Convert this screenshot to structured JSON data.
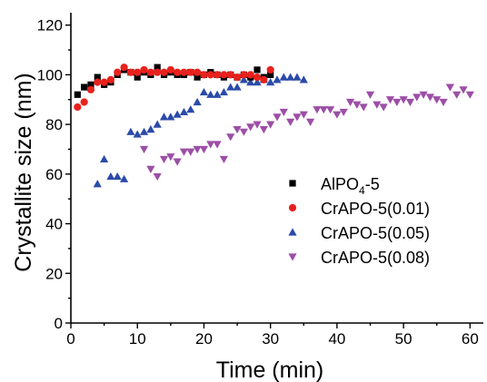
{
  "chart_data": {
    "type": "scatter",
    "xlabel": "Time (min)",
    "ylabel": "Crystallite size (nm)",
    "xlim": [
      0,
      62
    ],
    "ylim": [
      0,
      125
    ],
    "xticks": [
      0,
      10,
      20,
      30,
      40,
      50,
      60
    ],
    "yticks": [
      0,
      20,
      40,
      60,
      80,
      100,
      120
    ],
    "grid": false,
    "legend_position": "center-right",
    "series": [
      {
        "name": "AlPO4-5",
        "name_parts": {
          "base": "AlPO",
          "sub": "4",
          "suffix": "-5"
        },
        "marker": "square",
        "color": "#000000",
        "x": [
          1,
          2,
          3,
          4,
          5,
          6,
          7,
          8,
          9,
          10,
          11,
          12,
          13,
          14,
          15,
          16,
          17,
          18,
          19,
          20,
          21,
          22,
          23,
          24,
          25,
          26,
          27,
          28,
          29,
          30
        ],
        "y": [
          92,
          95,
          96,
          99,
          96,
          97,
          100,
          102,
          101,
          99,
          101,
          100,
          103,
          100,
          101,
          100,
          100,
          101,
          99,
          100,
          101,
          100,
          99,
          100,
          99,
          100,
          99,
          102,
          99,
          100
        ]
      },
      {
        "name": "CrAPO-5(0.01)",
        "marker": "circle",
        "color": "#e8211c",
        "x": [
          1,
          2,
          3,
          4,
          5,
          6,
          7,
          8,
          9,
          10,
          11,
          12,
          13,
          14,
          15,
          16,
          17,
          18,
          19,
          20,
          21,
          22,
          23,
          24,
          25,
          26,
          27,
          28,
          29,
          30
        ],
        "y": [
          87,
          89,
          94,
          97,
          97,
          98,
          101,
          103,
          101,
          101,
          102,
          101,
          101,
          101,
          102,
          101,
          101,
          101,
          101,
          100,
          100,
          100,
          100,
          100,
          99,
          100,
          100,
          99,
          98,
          102
        ]
      },
      {
        "name": "CrAPO-5(0.05)",
        "marker": "triangle-up",
        "color": "#2b4ba8",
        "x": [
          4,
          5,
          6,
          7,
          8,
          9,
          10,
          11,
          12,
          13,
          14,
          15,
          16,
          17,
          18,
          19,
          20,
          21,
          22,
          23,
          24,
          25,
          26,
          27,
          28,
          29,
          30,
          31,
          32,
          33,
          34,
          35
        ],
        "y": [
          56,
          66,
          59,
          59,
          58,
          77,
          76,
          77,
          78,
          80,
          83,
          83,
          84,
          85,
          86,
          89,
          93,
          92,
          92,
          93,
          95,
          95,
          98,
          97,
          97,
          98,
          97,
          98,
          99,
          99,
          99,
          98
        ]
      },
      {
        "name": "CrAPO-5(0.08)",
        "marker": "triangle-down",
        "color": "#9c4fa6",
        "x": [
          11,
          12,
          13,
          14,
          15,
          16,
          17,
          18,
          19,
          20,
          21,
          22,
          23,
          24,
          25,
          26,
          27,
          28,
          29,
          30,
          31,
          32,
          33,
          34,
          35,
          36,
          37,
          38,
          39,
          40,
          41,
          42,
          43,
          44,
          45,
          46,
          47,
          48,
          49,
          50,
          51,
          52,
          53,
          54,
          55,
          56,
          57,
          58,
          59,
          60
        ],
        "y": [
          70,
          62,
          59,
          66,
          67,
          65,
          69,
          69,
          70,
          70,
          72,
          72,
          66,
          75,
          78,
          77,
          79,
          80,
          78,
          80,
          83,
          85,
          81,
          83,
          84,
          81,
          86,
          86,
          86,
          84,
          85,
          89,
          88,
          87,
          92,
          88,
          87,
          90,
          89,
          90,
          89,
          91,
          92,
          91,
          90,
          89,
          95,
          92,
          94,
          92
        ]
      }
    ]
  }
}
